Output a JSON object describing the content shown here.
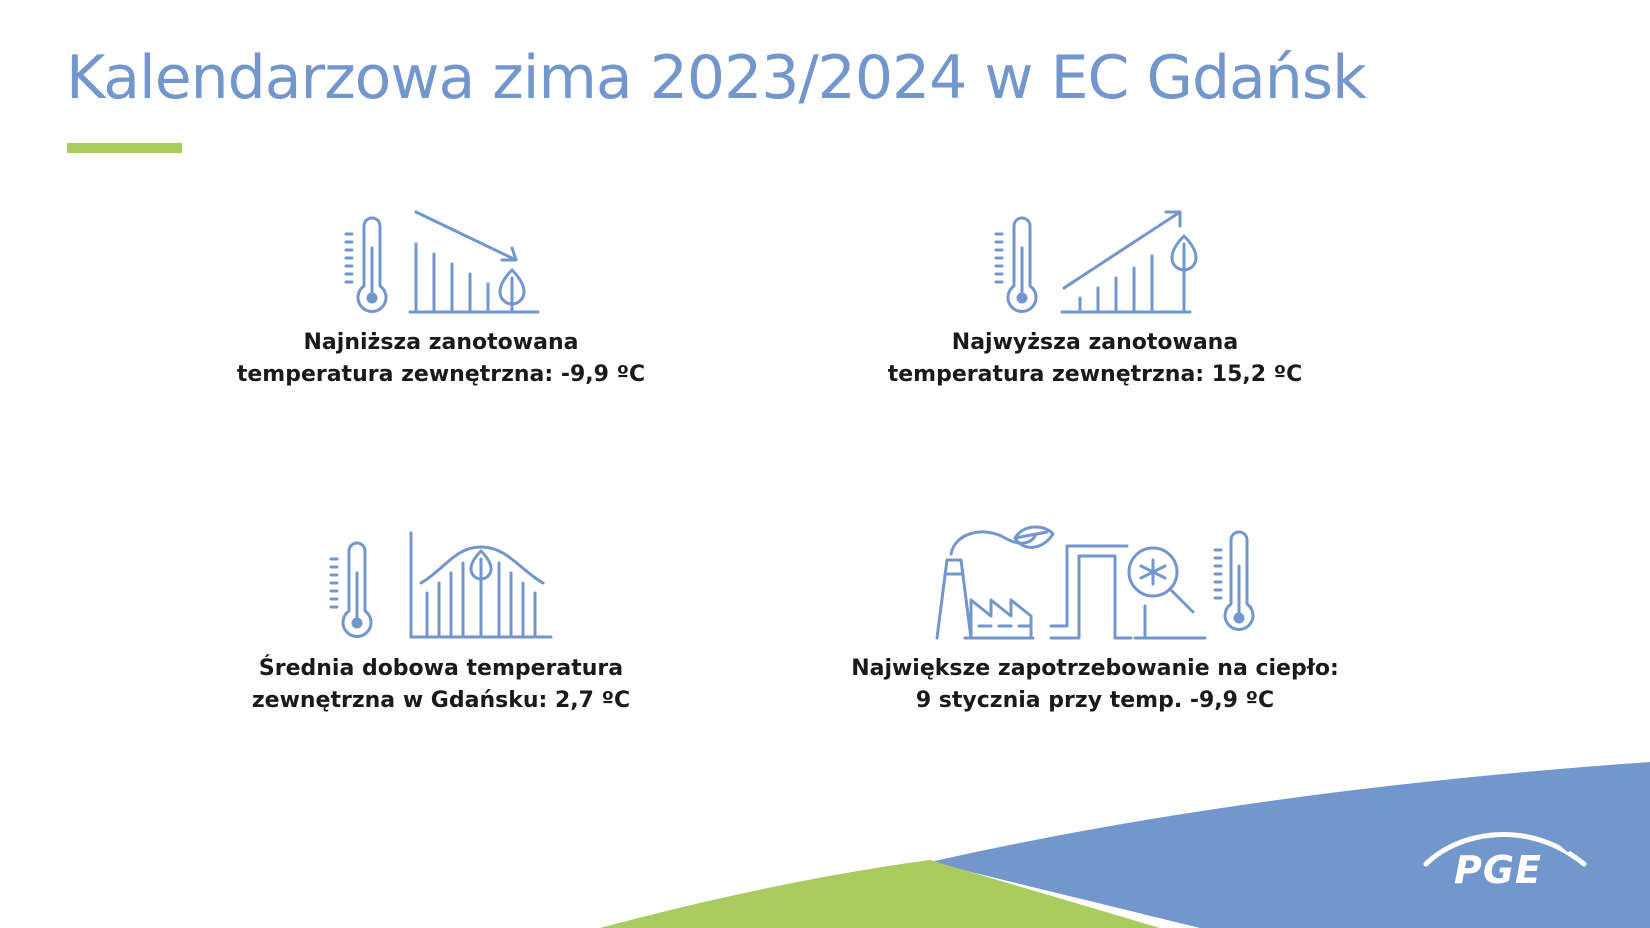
{
  "slide": {
    "title": "Kalendarzowa zima 2023/2024 w EC Gdańsk",
    "accent_color": "#a9cb60",
    "title_color": "#7396cd",
    "icon_color": "#7396cd",
    "shape_blue": "#7396cd",
    "shape_green": "#a9cb60"
  },
  "stats": [
    {
      "icon": "thermometer-falling-chart-icon",
      "lines": [
        "Najniższa zanotowana",
        "temperatura zewnętrzna: -9,9 ºC"
      ]
    },
    {
      "icon": "thermometer-rising-chart-icon",
      "lines": [
        "Najwyższa zanotowana",
        "temperatura zewnętrzna: 15,2 ºC"
      ]
    },
    {
      "icon": "thermometer-average-curve-icon",
      "lines": [
        "Średnia dobowa temperatura",
        "zewnętrzna w Gdańsku: 2,7 ºC"
      ]
    },
    {
      "icon": "factory-heat-pipe-icon",
      "lines": [
        "Największe zapotrzebowanie na ciepło:",
        "9 stycznia przy temp. -9,9 ºC"
      ]
    }
  ],
  "logo": {
    "text": "PGE"
  }
}
